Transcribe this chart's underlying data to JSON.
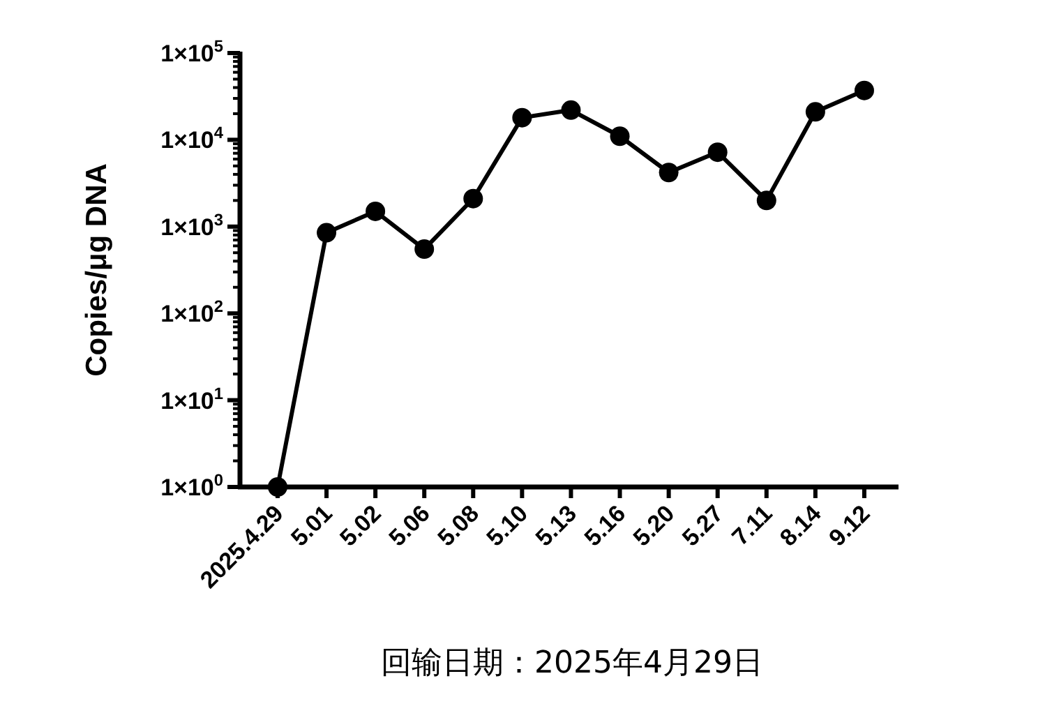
{
  "chart_data": {
    "type": "line",
    "xlabel": "回输日期：2025年4月29日",
    "ylabel": "Copies/μg DNA",
    "categories": [
      "2025.4.29",
      "5.01",
      "5.02",
      "5.06",
      "5.08",
      "5.10",
      "5.13",
      "5.16",
      "5.20",
      "5.27",
      "7.11",
      "8.14",
      "9.12"
    ],
    "series": [
      {
        "color": "#000000",
        "values": [
          1,
          850,
          1500,
          550,
          2100,
          18000,
          22000,
          11000,
          4200,
          7200,
          2000,
          21000,
          37000
        ]
      }
    ],
    "log": true,
    "ylim": [
      1,
      100000
    ],
    "yticks": [
      {
        "value": 1,
        "label": "1×10$^{0}$"
      },
      {
        "value": 10,
        "label": "1×10$^{1}$"
      },
      {
        "value": 100,
        "label": "1×10$^{2}$"
      },
      {
        "value": 1000,
        "label": "1×10$^{3}$"
      },
      {
        "value": 10000,
        "label": "1×10$^{4}$"
      },
      {
        "value": 100000,
        "label": "1×10$^{5}$"
      }
    ],
    "marker": "circle",
    "line_style": "solid"
  }
}
